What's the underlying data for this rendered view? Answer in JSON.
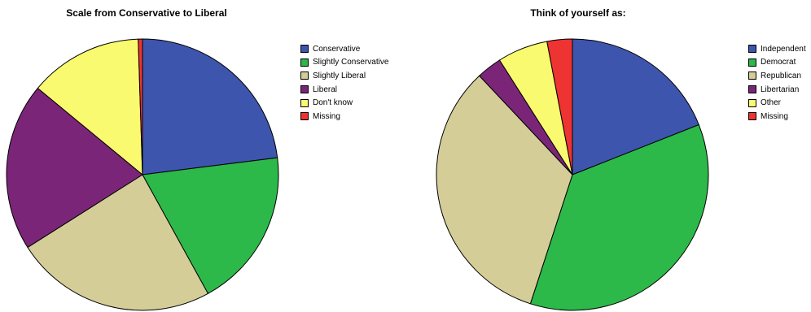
{
  "chart_data": [
    {
      "type": "pie",
      "title": "Scale from Conservative to Liberal",
      "categories": [
        "Conservative",
        "Slightly Conservative",
        "Slightly Liberal",
        "Liberal",
        "Don't know",
        "Missing"
      ],
      "values": [
        23,
        19,
        24,
        20,
        13.5,
        0.5
      ],
      "colors": [
        "#3d55ac",
        "#2db84a",
        "#d4cd98",
        "#7b2579",
        "#fafa70",
        "#ee3333"
      ],
      "legend_position": "right"
    },
    {
      "type": "pie",
      "title": "Think of yourself as:",
      "categories": [
        "Independent",
        "Democrat",
        "Republican",
        "Libertarian",
        "Other",
        "Missing"
      ],
      "values": [
        19,
        36,
        33,
        3,
        6,
        3
      ],
      "colors": [
        "#3d55ac",
        "#2db84a",
        "#d4cd98",
        "#7b2579",
        "#fafa70",
        "#ee3333"
      ],
      "legend_position": "right"
    }
  ]
}
